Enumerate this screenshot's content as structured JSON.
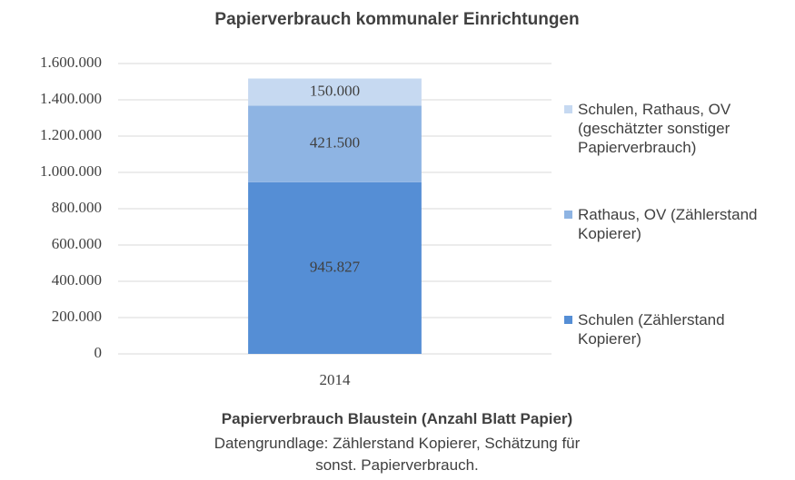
{
  "chart_data": {
    "type": "stacked_bar",
    "title": "Papierverbrauch kommunaler Einrichtungen",
    "x_label": "Papierverbrauch Blaustein (Anzahl Blatt Papier)",
    "note": "Datengrundlage: Zählerstand Kopierer, Schätzung für sonst. Papierverbrauch.",
    "categories": [
      "2014"
    ],
    "series": [
      {
        "name": "Schulen (Zählerstand Kopierer)",
        "color": "#558ed5",
        "values": [
          945827
        ],
        "value_labels": [
          "945.827"
        ]
      },
      {
        "name": "Rathaus, OV (Zählerstand Kopierer)",
        "color": "#8eb4e3",
        "values": [
          421500
        ],
        "value_labels": [
          "421.500"
        ]
      },
      {
        "name": "Schulen, Rathaus, OV (geschätzter sonstiger Papierverbrauch)",
        "color": "#c6d9f1",
        "values": [
          150000
        ],
        "value_labels": [
          "150.000"
        ]
      }
    ],
    "ylim": [
      0,
      1600000
    ],
    "yticks": [
      0,
      {
        "value": 200000,
        "label": "200.000"
      },
      {
        "value": 400000,
        "label": "400.000"
      },
      {
        "value": 600000,
        "label": "600.000"
      },
      {
        "value": 800000,
        "label": "800.000"
      },
      {
        "value": 1000000,
        "label": "1.000.000"
      },
      {
        "value": 1200000,
        "label": "1.200.000"
      },
      {
        "value": 1400000,
        "label": "1.400.000"
      },
      {
        "value": 1600000,
        "label": "1.600.000"
      }
    ],
    "grid": true,
    "legend": "right"
  }
}
